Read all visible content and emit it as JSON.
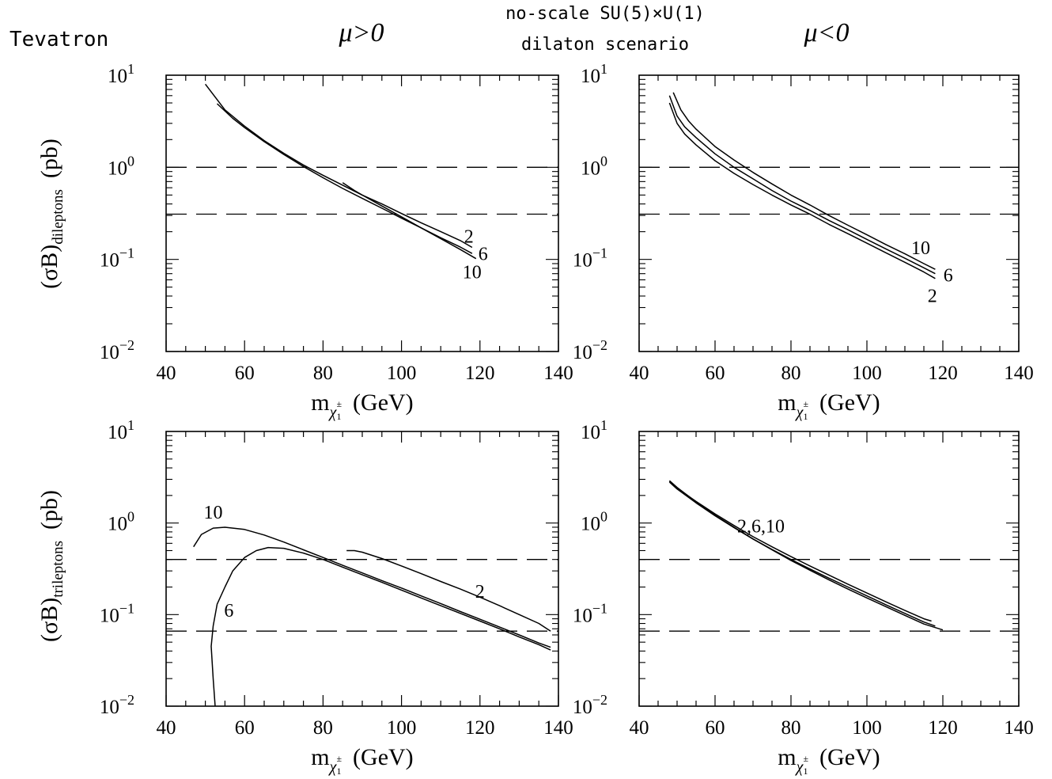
{
  "header": {
    "left_label": "Tevatron",
    "center_line1": "no-scale SU(5)×U(1)",
    "center_line2": "dilaton scenario",
    "col_left": "μ>0",
    "col_right": "μ<0"
  },
  "axis_text": {
    "x_main": "m",
    "x_sub": "χ",
    "x_sub2": "1",
    "x_sup": "±",
    "x_unit": "(GeV)",
    "y_top_main": "(σB)",
    "y_top_sub": "dileptons",
    "y_bottom_sub": "trileptons",
    "y_unit": "(pb)",
    "tick_base": "10",
    "y_exps": [
      "1",
      "0",
      "−1",
      "−2"
    ]
  },
  "chart_data": [
    {
      "type": "line",
      "panel": "top-left",
      "x_ticks": [
        40,
        60,
        80,
        100,
        120,
        140
      ],
      "xlim": [
        40,
        140
      ],
      "ylim": [
        0.01,
        10
      ],
      "y_scale": "log",
      "hlines": [
        1.0,
        0.31
      ],
      "series": [
        {
          "name": "2",
          "x": [
            50,
            55,
            60,
            65,
            70,
            75,
            80,
            85,
            90,
            95,
            100,
            105,
            110,
            115,
            118
          ],
          "y": [
            8.0,
            4.2,
            2.8,
            1.95,
            1.42,
            1.06,
            0.82,
            0.64,
            0.5,
            0.4,
            0.315,
            0.25,
            0.2,
            0.16,
            0.135
          ]
        },
        {
          "name": "6",
          "x": [
            53,
            57,
            60,
            65,
            70,
            75,
            80,
            85,
            90,
            95,
            100,
            105,
            110,
            115,
            118
          ],
          "y": [
            4.9,
            3.4,
            2.7,
            1.9,
            1.38,
            1.02,
            0.77,
            0.59,
            0.46,
            0.36,
            0.28,
            0.22,
            0.172,
            0.136,
            0.116
          ]
        },
        {
          "name": "10",
          "x": [
            85,
            88,
            90,
            95,
            100,
            105,
            110,
            115,
            119
          ],
          "y": [
            0.68,
            0.56,
            0.5,
            0.38,
            0.29,
            0.22,
            0.168,
            0.128,
            0.102
          ]
        }
      ],
      "labels": [
        "2",
        "6",
        "10"
      ]
    },
    {
      "type": "line",
      "panel": "top-right",
      "x_ticks": [
        40,
        60,
        80,
        100,
        120,
        140
      ],
      "xlim": [
        40,
        140
      ],
      "ylim": [
        0.01,
        10
      ],
      "y_scale": "log",
      "hlines": [
        1.0,
        0.31
      ],
      "series": [
        {
          "name": "10",
          "x": [
            49,
            51,
            53,
            55,
            60,
            65,
            70,
            75,
            80,
            85,
            90,
            95,
            100,
            105,
            110,
            115,
            118
          ],
          "y": [
            6.5,
            4.2,
            3.2,
            2.6,
            1.68,
            1.2,
            0.88,
            0.66,
            0.5,
            0.39,
            0.3,
            0.235,
            0.185,
            0.145,
            0.115,
            0.09,
            0.078
          ]
        },
        {
          "name": "6",
          "x": [
            48,
            50,
            52,
            55,
            60,
            65,
            70,
            75,
            80,
            85,
            90,
            95,
            100,
            105,
            110,
            115,
            118
          ],
          "y": [
            6.0,
            3.6,
            2.75,
            2.1,
            1.4,
            1.0,
            0.75,
            0.56,
            0.43,
            0.34,
            0.265,
            0.21,
            0.165,
            0.13,
            0.103,
            0.081,
            0.07
          ]
        },
        {
          "name": "2",
          "x": [
            48,
            50,
            52,
            55,
            60,
            65,
            70,
            75,
            80,
            85,
            90,
            95,
            100,
            105,
            110,
            115,
            118
          ],
          "y": [
            5.0,
            3.0,
            2.3,
            1.75,
            1.18,
            0.86,
            0.65,
            0.5,
            0.39,
            0.31,
            0.24,
            0.19,
            0.15,
            0.118,
            0.093,
            0.073,
            0.062
          ]
        }
      ],
      "labels": [
        "10",
        "6",
        "2"
      ]
    },
    {
      "type": "line",
      "panel": "bottom-left",
      "x_ticks": [
        40,
        60,
        80,
        100,
        120,
        140
      ],
      "xlim": [
        40,
        140
      ],
      "ylim": [
        0.01,
        10
      ],
      "y_scale": "log",
      "hlines": [
        0.4,
        0.066
      ],
      "series": [
        {
          "name": "10",
          "x": [
            47,
            49,
            52,
            55,
            60,
            65,
            70,
            75,
            80,
            85,
            90,
            95,
            100,
            105,
            110,
            115,
            120,
            125,
            130,
            135,
            138
          ],
          "y": [
            0.55,
            0.75,
            0.88,
            0.9,
            0.85,
            0.74,
            0.62,
            0.51,
            0.42,
            0.345,
            0.285,
            0.235,
            0.195,
            0.16,
            0.132,
            0.108,
            0.089,
            0.073,
            0.06,
            0.049,
            0.044
          ]
        },
        {
          "name": "6",
          "x": [
            52.5,
            52,
            51.5,
            52,
            53,
            55,
            57,
            60,
            63,
            66,
            70,
            75,
            80,
            85,
            90,
            95,
            100,
            105,
            110,
            115,
            120,
            125,
            130,
            135,
            138
          ],
          "y": [
            0.01,
            0.02,
            0.045,
            0.075,
            0.13,
            0.2,
            0.3,
            0.42,
            0.5,
            0.54,
            0.53,
            0.47,
            0.4,
            0.33,
            0.272,
            0.225,
            0.185,
            0.152,
            0.125,
            0.103,
            0.085,
            0.07,
            0.057,
            0.047,
            0.041
          ]
        },
        {
          "name": "2",
          "x": [
            86,
            88,
            90,
            95,
            100,
            105,
            110,
            115,
            120,
            125,
            130,
            135,
            138
          ],
          "y": [
            0.5,
            0.5,
            0.48,
            0.41,
            0.34,
            0.28,
            0.23,
            0.19,
            0.155,
            0.125,
            0.1,
            0.08,
            0.066
          ]
        }
      ],
      "labels": [
        "10",
        "6",
        "2"
      ]
    },
    {
      "type": "line",
      "panel": "bottom-right",
      "x_ticks": [
        40,
        60,
        80,
        100,
        120,
        140
      ],
      "xlim": [
        40,
        140
      ],
      "ylim": [
        0.01,
        10
      ],
      "y_scale": "log",
      "hlines": [
        0.4,
        0.066
      ],
      "series": [
        {
          "name": "2",
          "x": [
            48,
            50,
            55,
            60,
            65,
            70,
            75,
            80,
            85,
            90,
            95,
            100,
            105,
            110,
            115,
            120
          ],
          "y": [
            2.9,
            2.45,
            1.7,
            1.22,
            0.9,
            0.67,
            0.51,
            0.39,
            0.305,
            0.24,
            0.19,
            0.152,
            0.122,
            0.098,
            0.079,
            0.068
          ]
        },
        {
          "name": "6",
          "x": [
            48,
            50,
            55,
            60,
            65,
            70,
            75,
            80,
            85,
            90,
            95,
            100,
            105,
            110,
            115,
            118
          ],
          "y": [
            2.8,
            2.35,
            1.66,
            1.2,
            0.89,
            0.67,
            0.515,
            0.4,
            0.315,
            0.25,
            0.2,
            0.16,
            0.128,
            0.103,
            0.083,
            0.075
          ]
        },
        {
          "name": "10",
          "x": [
            48,
            50,
            55,
            60,
            65,
            70,
            75,
            80,
            85,
            90,
            95,
            100,
            105,
            110,
            115,
            117
          ],
          "y": [
            2.85,
            2.4,
            1.72,
            1.26,
            0.94,
            0.71,
            0.55,
            0.43,
            0.34,
            0.27,
            0.215,
            0.172,
            0.138,
            0.111,
            0.09,
            0.085
          ]
        }
      ],
      "labels": [
        "2,6,10"
      ]
    }
  ]
}
